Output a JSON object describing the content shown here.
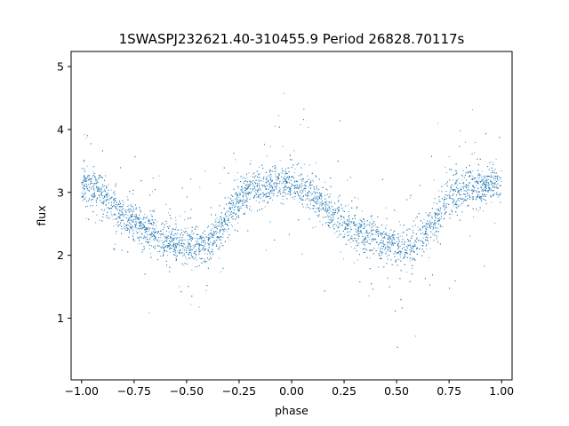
{
  "chart_data": {
    "type": "scatter",
    "title": "1SWASPJ232621.40-310455.9 Period 26828.70117s",
    "xlabel": "phase",
    "ylabel": "flux",
    "xlim": [
      -1.05,
      1.05
    ],
    "ylim": [
      0.02,
      5.24
    ],
    "xticks": [
      -1.0,
      -0.75,
      -0.5,
      -0.25,
      0.0,
      0.25,
      0.5,
      0.75,
      1.0
    ],
    "xtick_labels": [
      "−1.00",
      "−0.75",
      "−0.50",
      "−0.25",
      "0.00",
      "0.25",
      "0.50",
      "0.75",
      "1.00"
    ],
    "yticks": [
      1,
      2,
      3,
      4,
      5
    ],
    "ytick_labels": [
      "1",
      "2",
      "3",
      "4",
      "5"
    ],
    "grid": false,
    "marker_color": "#1f77b4",
    "series": [
      {
        "points_description": "dense light curve, folded over phase -1 to 1",
        "x": [
          -1.0,
          -0.9,
          -0.8,
          -0.7,
          -0.6,
          -0.5,
          -0.45,
          -0.4,
          -0.3,
          -0.25,
          -0.2,
          -0.1,
          -0.05,
          0.0,
          0.1,
          0.2,
          0.3,
          0.4,
          0.5,
          0.55,
          0.6,
          0.7,
          0.75,
          0.8,
          0.9,
          0.95,
          1.0
        ],
        "y": [
          3.15,
          2.95,
          2.65,
          2.4,
          2.25,
          2.15,
          2.12,
          2.2,
          2.6,
          2.9,
          3.0,
          3.1,
          3.18,
          3.15,
          2.95,
          2.65,
          2.4,
          2.25,
          2.15,
          2.12,
          2.2,
          2.6,
          2.9,
          3.0,
          3.1,
          3.18,
          3.15
        ]
      }
    ]
  }
}
